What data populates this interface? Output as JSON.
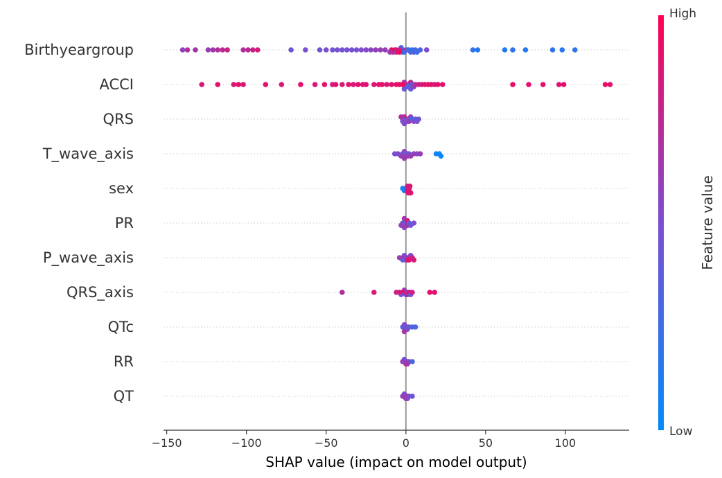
{
  "chart_data": {
    "type": "scatter",
    "subtype": "shap-beeswarm",
    "xlabel": "SHAP value (impact on model output)",
    "xlim": [
      -152,
      140
    ],
    "xticks": [
      -150,
      -100,
      -50,
      0,
      50,
      100
    ],
    "xtick_labels": [
      "−150",
      "−100",
      "−50",
      "0",
      "50",
      "100"
    ],
    "colorbar": {
      "title": "Feature value",
      "high_label": "High",
      "low_label": "Low",
      "low_color": "#008bfb",
      "mid_color": "#7b4fd0",
      "high_color": "#ff0052"
    },
    "features": [
      {
        "name": "Birthyeargroup",
        "points": [
          [
            -140,
            0.6
          ],
          [
            -137,
            0.7
          ],
          [
            -132,
            0.65
          ],
          [
            -124,
            0.6
          ],
          [
            -121,
            0.65
          ],
          [
            -118,
            0.7
          ],
          [
            -115,
            0.75
          ],
          [
            -112,
            0.8
          ],
          [
            -102,
            0.7
          ],
          [
            -99,
            0.75
          ],
          [
            -96,
            0.8
          ],
          [
            -93,
            0.85
          ],
          [
            -72,
            0.45
          ],
          [
            -63,
            0.5
          ],
          [
            -54,
            0.45
          ],
          [
            -50,
            0.5
          ],
          [
            -46,
            0.45
          ],
          [
            -43,
            0.5
          ],
          [
            -40,
            0.45
          ],
          [
            -37,
            0.5
          ],
          [
            -34,
            0.45
          ],
          [
            -31,
            0.5
          ],
          [
            -28,
            0.5
          ],
          [
            -25,
            0.55
          ],
          [
            -22,
            0.55
          ],
          [
            -19,
            0.6
          ],
          [
            -16,
            0.6
          ],
          [
            -13,
            0.6
          ],
          [
            -10,
            0.65
          ],
          [
            -8,
            0.7
          ],
          [
            -6,
            0.75
          ],
          [
            -4,
            0.8
          ],
          [
            -2,
            0.85
          ],
          [
            -3,
            0.3
          ],
          [
            -1,
            0.35
          ],
          [
            1,
            0.3
          ],
          [
            3,
            0.35
          ],
          [
            5,
            0.3
          ],
          [
            7,
            0.25
          ],
          [
            9,
            0.3
          ],
          [
            2,
            0.25
          ],
          [
            -2,
            0.2
          ],
          [
            0,
            0.15
          ],
          [
            4,
            0.2
          ],
          [
            6,
            0.28
          ],
          [
            -6,
            0.9
          ],
          [
            -9,
            0.92
          ],
          [
            -4,
            0.95
          ],
          [
            -7,
            0.88
          ],
          [
            13,
            0.5
          ],
          [
            42,
            0.2
          ],
          [
            45,
            0.15
          ],
          [
            62,
            0.15
          ],
          [
            67,
            0.2
          ],
          [
            75,
            0.15
          ],
          [
            92,
            0.2
          ],
          [
            98,
            0.15
          ],
          [
            106,
            0.2
          ]
        ]
      },
      {
        "name": "ACCI",
        "points": [
          [
            -128,
            0.85
          ],
          [
            -118,
            0.9
          ],
          [
            -108,
            0.85
          ],
          [
            -105,
            0.9
          ],
          [
            -102,
            0.85
          ],
          [
            -88,
            0.9
          ],
          [
            -78,
            0.85
          ],
          [
            -66,
            0.9
          ],
          [
            -57,
            0.85
          ],
          [
            -51,
            0.9
          ],
          [
            -46,
            0.85
          ],
          [
            -44,
            0.9
          ],
          [
            -40,
            0.85
          ],
          [
            -36,
            0.9
          ],
          [
            -33,
            0.85
          ],
          [
            -30,
            0.9
          ],
          [
            -27,
            0.85
          ],
          [
            -25,
            0.9
          ],
          [
            -20,
            0.85
          ],
          [
            -17,
            0.9
          ],
          [
            -15,
            0.9
          ],
          [
            -12,
            0.85
          ],
          [
            -9,
            0.88
          ],
          [
            -6,
            0.9
          ],
          [
            -4,
            0.92
          ],
          [
            -2,
            0.95
          ],
          [
            -1,
            0.7
          ],
          [
            1,
            0.65
          ],
          [
            3,
            0.75
          ],
          [
            2,
            0.55
          ],
          [
            0,
            0.5
          ],
          [
            3,
            0.4
          ],
          [
            1,
            0.35
          ],
          [
            4,
            0.45
          ],
          [
            -1,
            0.45
          ],
          [
            0,
            0.25
          ],
          [
            2,
            0.3
          ],
          [
            5,
            0.6
          ],
          [
            6,
            0.7
          ],
          [
            8,
            0.8
          ],
          [
            10,
            0.85
          ],
          [
            12,
            0.9
          ],
          [
            14,
            0.88
          ],
          [
            16,
            0.9
          ],
          [
            18,
            0.85
          ],
          [
            20,
            0.9
          ],
          [
            23,
            0.88
          ],
          [
            67,
            0.92
          ],
          [
            77,
            0.88
          ],
          [
            86,
            0.9
          ],
          [
            96,
            0.88
          ],
          [
            99,
            0.9
          ],
          [
            125,
            0.92
          ],
          [
            128,
            0.9
          ]
        ]
      },
      {
        "name": "QRS",
        "points": [
          [
            -3,
            0.7
          ],
          [
            -1,
            0.75
          ],
          [
            1,
            0.7
          ],
          [
            3,
            0.6
          ],
          [
            5,
            0.55
          ],
          [
            7,
            0.5
          ],
          [
            8,
            0.45
          ],
          [
            -2,
            0.35
          ],
          [
            0,
            0.4
          ],
          [
            2,
            0.3
          ],
          [
            4,
            0.3
          ],
          [
            6,
            0.35
          ],
          [
            -1,
            0.55
          ],
          [
            1,
            0.5
          ],
          [
            0,
            0.6
          ],
          [
            2,
            0.62
          ],
          [
            -2,
            0.52
          ]
        ]
      },
      {
        "name": "T_wave_axis",
        "points": [
          [
            -7,
            0.5
          ],
          [
            -5,
            0.55
          ],
          [
            -3,
            0.6
          ],
          [
            -1,
            0.55
          ],
          [
            1,
            0.5
          ],
          [
            3,
            0.6
          ],
          [
            5,
            0.6
          ],
          [
            7,
            0.55
          ],
          [
            9,
            0.6
          ],
          [
            -2,
            0.45
          ],
          [
            0,
            0.4
          ],
          [
            2,
            0.45
          ],
          [
            0,
            0.65
          ],
          [
            1,
            0.7
          ],
          [
            -1,
            0.62
          ],
          [
            19,
            0.05
          ],
          [
            21,
            0.05
          ],
          [
            22,
            0.05
          ]
        ]
      },
      {
        "name": "sex",
        "points": [
          [
            -1,
            0.15
          ],
          [
            0,
            0.1
          ],
          [
            -2,
            0.1
          ],
          [
            1,
            0.85
          ],
          [
            2,
            0.9
          ],
          [
            3,
            0.88
          ],
          [
            0.5,
            0.95
          ],
          [
            1.5,
            0.92
          ],
          [
            2.5,
            0.86
          ],
          [
            1,
            0.8
          ],
          [
            2,
            0.85
          ]
        ]
      },
      {
        "name": "PR",
        "points": [
          [
            -3,
            0.6
          ],
          [
            -1,
            0.55
          ],
          [
            1,
            0.5
          ],
          [
            3,
            0.45
          ],
          [
            5,
            0.5
          ],
          [
            -2,
            0.4
          ],
          [
            0,
            0.35
          ],
          [
            2,
            0.4
          ],
          [
            -1,
            0.65
          ],
          [
            1,
            0.7
          ],
          [
            0,
            0.9
          ],
          [
            1,
            0.85
          ],
          [
            -0.5,
            0.95
          ]
        ]
      },
      {
        "name": "P_wave_axis",
        "points": [
          [
            -4,
            0.6
          ],
          [
            -2,
            0.65
          ],
          [
            0,
            0.7
          ],
          [
            2,
            0.75
          ],
          [
            4,
            0.8
          ],
          [
            5,
            0.85
          ],
          [
            -1,
            0.5
          ],
          [
            1,
            0.45
          ],
          [
            3,
            0.55
          ],
          [
            -2,
            0.4
          ],
          [
            0,
            0.35
          ],
          [
            1,
            0.9
          ],
          [
            2,
            0.88
          ]
        ]
      },
      {
        "name": "QRS_axis",
        "points": [
          [
            -40,
            0.7
          ],
          [
            -20,
            0.85
          ],
          [
            -6,
            0.8
          ],
          [
            -4,
            0.85
          ],
          [
            -2,
            0.9
          ],
          [
            0,
            0.88
          ],
          [
            2,
            0.85
          ],
          [
            4,
            0.8
          ],
          [
            -1,
            0.6
          ],
          [
            1,
            0.55
          ],
          [
            -3,
            0.5
          ],
          [
            3,
            0.45
          ],
          [
            0,
            0.4
          ],
          [
            15,
            0.9
          ],
          [
            18,
            0.88
          ],
          [
            1,
            0.7
          ]
        ]
      },
      {
        "name": "QTc",
        "points": [
          [
            -2,
            0.4
          ],
          [
            0,
            0.45
          ],
          [
            2,
            0.4
          ],
          [
            4,
            0.35
          ],
          [
            6,
            0.3
          ],
          [
            -1,
            0.55
          ],
          [
            1,
            0.6
          ],
          [
            0,
            0.3
          ],
          [
            1,
            0.5
          ],
          [
            -1,
            0.65
          ]
        ]
      },
      {
        "name": "RR",
        "points": [
          [
            -2,
            0.6
          ],
          [
            0,
            0.55
          ],
          [
            2,
            0.6
          ],
          [
            4,
            0.3
          ],
          [
            -1,
            0.45
          ],
          [
            1,
            0.5
          ],
          [
            0,
            0.7
          ],
          [
            1,
            0.65
          ]
        ]
      },
      {
        "name": "QT",
        "points": [
          [
            -2,
            0.6
          ],
          [
            0,
            0.55
          ],
          [
            2,
            0.5
          ],
          [
            4,
            0.45
          ],
          [
            -1,
            0.5
          ],
          [
            1,
            0.65
          ],
          [
            0,
            0.7
          ],
          [
            1,
            0.55
          ]
        ]
      }
    ]
  }
}
